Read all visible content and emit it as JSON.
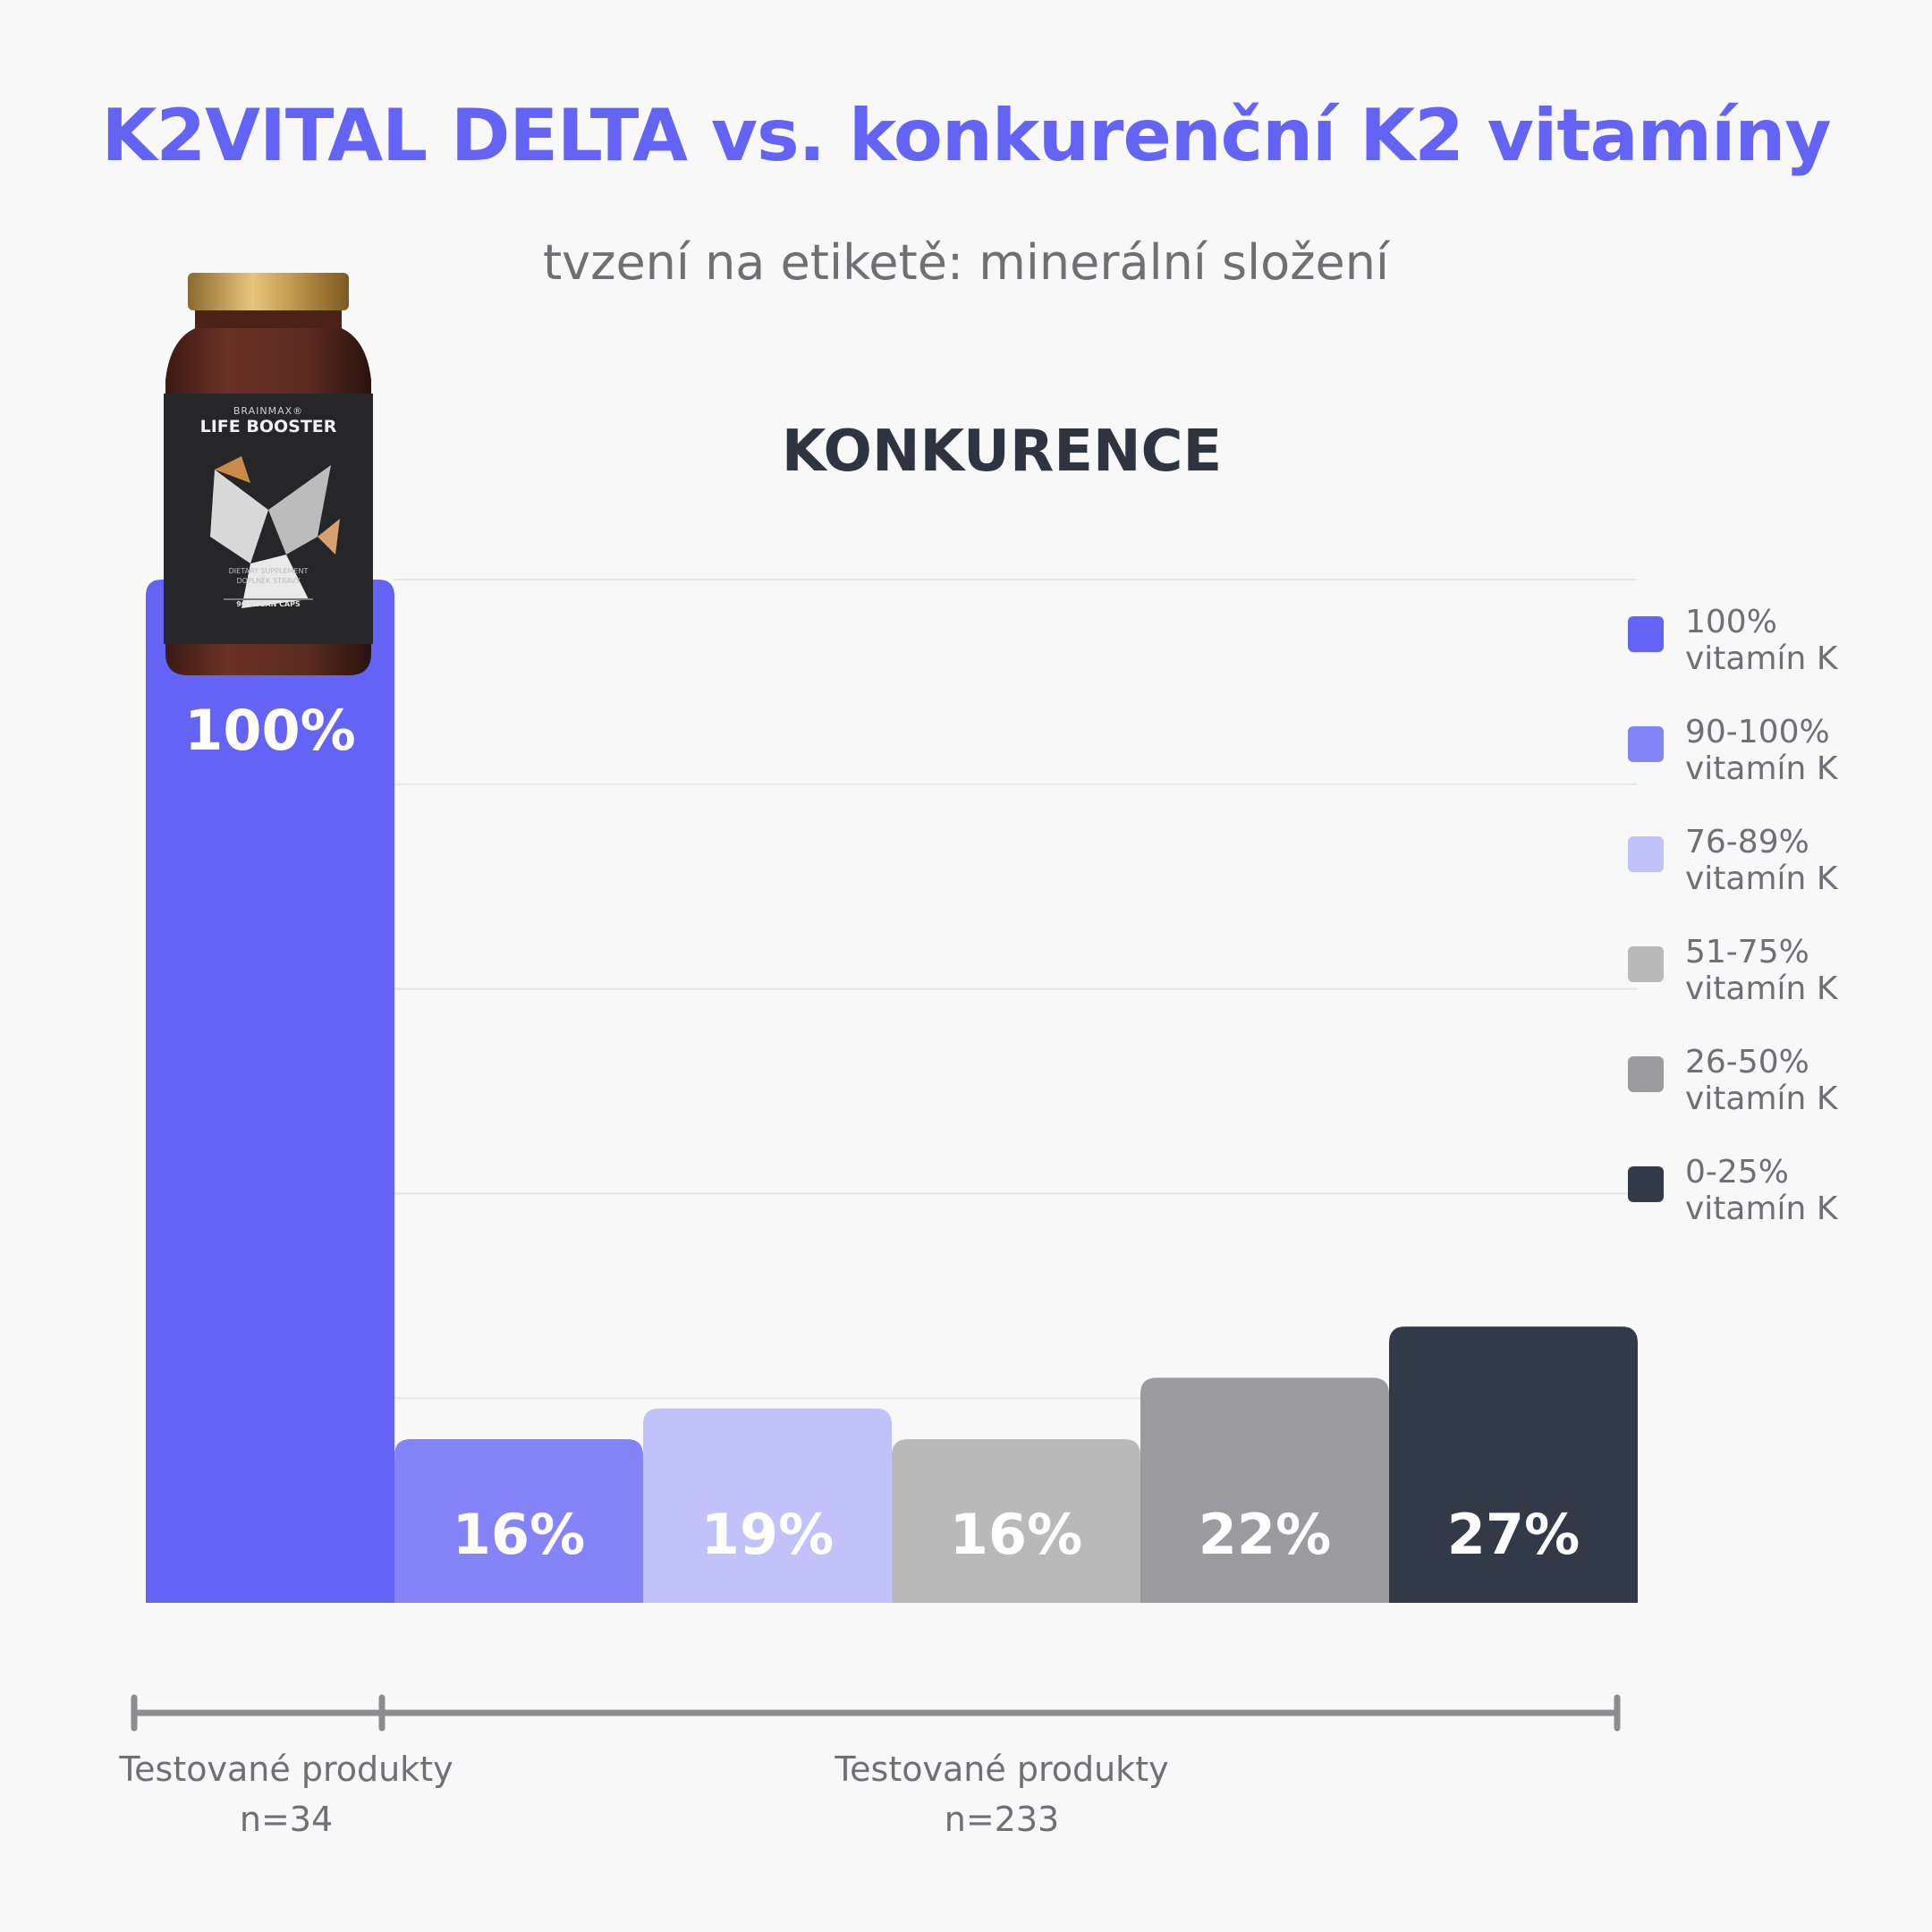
{
  "header": {
    "title": "K2VITAL DELTA vs. konkurenční K2 vitamíny",
    "subtitle": "tvzení na etiketě: minerální složení"
  },
  "section_title": "KONKURENCE",
  "product": {
    "brand": "BRAINMAX®",
    "name": "LIFE BOOSTER",
    "line1": "DIETARY SUPPLEMENT",
    "line2": "DOPLNĚK STRAVY",
    "caps": "90 VEGAN CAPS"
  },
  "chart_data": {
    "type": "bar",
    "categories": [
      "100% vitamín K",
      "90-100% vitamín K",
      "76-89% vitamín K",
      "51-75% vitamín K",
      "26-50% vitamín K",
      "0-25% vitamín K"
    ],
    "values": [
      100,
      16,
      19,
      16,
      22,
      27
    ],
    "data_labels": [
      "100%",
      "16%",
      "19%",
      "16%",
      "22%",
      "27%"
    ],
    "colors": [
      "#6363f6",
      "#8484f8",
      "#c2c2fb",
      "#b9b9ba",
      "#9b9b9f",
      "#333a47"
    ],
    "ylim": [
      0,
      100
    ],
    "grid": true,
    "legend_position": "right",
    "legend": [
      {
        "line1": "100%",
        "line2": "vitamín K",
        "color": "#6363f6"
      },
      {
        "line1": "90-100%",
        "line2": "vitamín K",
        "color": "#8484f8"
      },
      {
        "line1": "76-89%",
        "line2": "vitamín K",
        "color": "#c2c2fb"
      },
      {
        "line1": "51-75%",
        "line2": "vitamín K",
        "color": "#b9b9ba"
      },
      {
        "line1": "26-50%",
        "line2": "vitamín K",
        "color": "#9b9b9f"
      },
      {
        "line1": "0-25%",
        "line2": "vitamín K",
        "color": "#333a47"
      }
    ]
  },
  "groups": [
    {
      "label": "Testované produkty",
      "n": "n=34"
    },
    {
      "label": "Testované produkty",
      "n": "n=233"
    }
  ]
}
